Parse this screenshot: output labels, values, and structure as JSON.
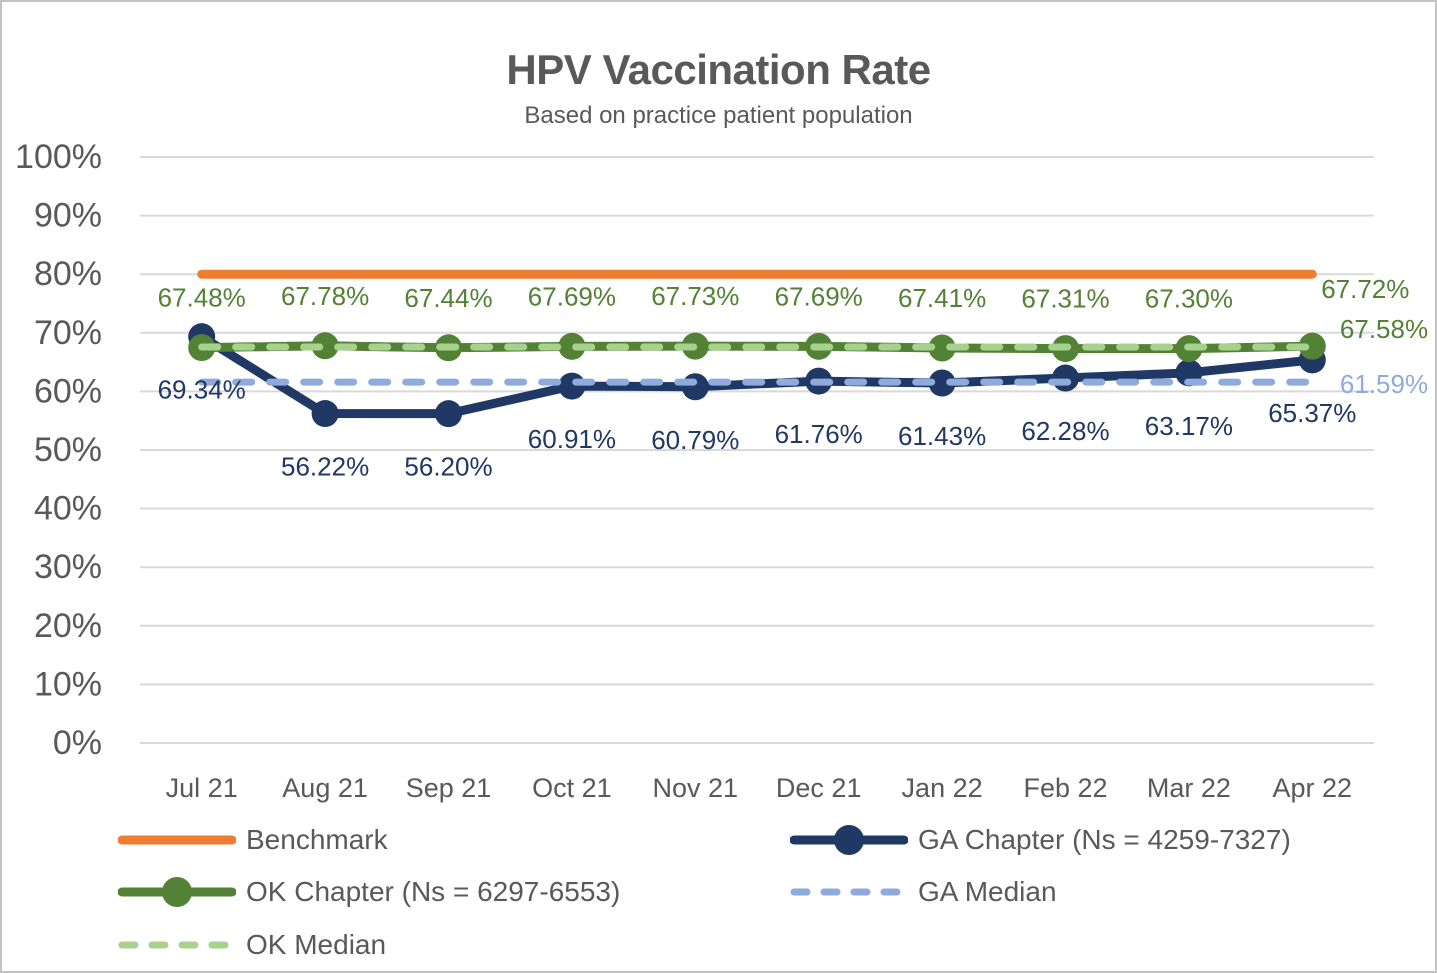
{
  "chart_data": {
    "type": "line",
    "title": "HPV Vaccination Rate",
    "subtitle": "Based on practice patient population",
    "categories": [
      "Jul 21",
      "Aug 21",
      "Sep 21",
      "Oct 21",
      "Nov 21",
      "Dec 21",
      "Jan 22",
      "Feb 22",
      "Mar 22",
      "Apr 22"
    ],
    "ylim": [
      0,
      100
    ],
    "y_tick_step": 10,
    "y_tick_labels": [
      "0%",
      "10%",
      "20%",
      "30%",
      "40%",
      "50%",
      "60%",
      "70%",
      "80%",
      "90%",
      "100%"
    ],
    "grid": true,
    "gridline_color": "#D9D9D9",
    "axis_text_color": "#595959",
    "legend_position": "bottom",
    "series": [
      {
        "name": "Benchmark",
        "color": "#ED7D31",
        "dash": false,
        "markers": false,
        "constant": 80,
        "data_labels": "none"
      },
      {
        "name": "GA Chapter (Ns = 4259-7327)",
        "color": "#1F3864",
        "dash": false,
        "markers": true,
        "values": [
          69.34,
          56.22,
          56.2,
          60.91,
          60.79,
          61.76,
          61.43,
          62.28,
          63.17,
          65.37
        ],
        "data_labels": "below"
      },
      {
        "name": "OK Chapter (Ns = 6297-6553)",
        "color": "#538135",
        "dash": false,
        "markers": true,
        "values": [
          67.48,
          67.78,
          67.44,
          67.69,
          67.73,
          67.69,
          67.41,
          67.31,
          67.3,
          67.72
        ],
        "data_labels": "above",
        "last_label_placement": "right-above"
      },
      {
        "name": "GA Median",
        "color": "#8FAADC",
        "dash": true,
        "markers": false,
        "constant": 61.59,
        "end_label": "61.59%",
        "end_label_color": "#8FAADC",
        "end_label_dy": 2
      },
      {
        "name": "OK Median",
        "color": "#A9D18E",
        "dash": true,
        "markers": false,
        "constant": 67.58,
        "end_label": "67.58%",
        "end_label_color": "#538135",
        "end_label_dy": -18
      }
    ],
    "legend": [
      {
        "label": "Benchmark",
        "color": "#ED7D31",
        "style": "solid",
        "marker": false
      },
      {
        "label": "OK Chapter (Ns = 6297-6553)",
        "color": "#538135",
        "style": "solid",
        "marker": true
      },
      {
        "label": "OK Median",
        "color": "#A9D18E",
        "style": "dashed",
        "marker": false
      },
      {
        "label": "GA Chapter (Ns = 4259-7327)",
        "color": "#1F3864",
        "style": "solid",
        "marker": true
      },
      {
        "label": "GA Median",
        "color": "#8FAADC",
        "style": "dashed",
        "marker": false
      }
    ]
  }
}
